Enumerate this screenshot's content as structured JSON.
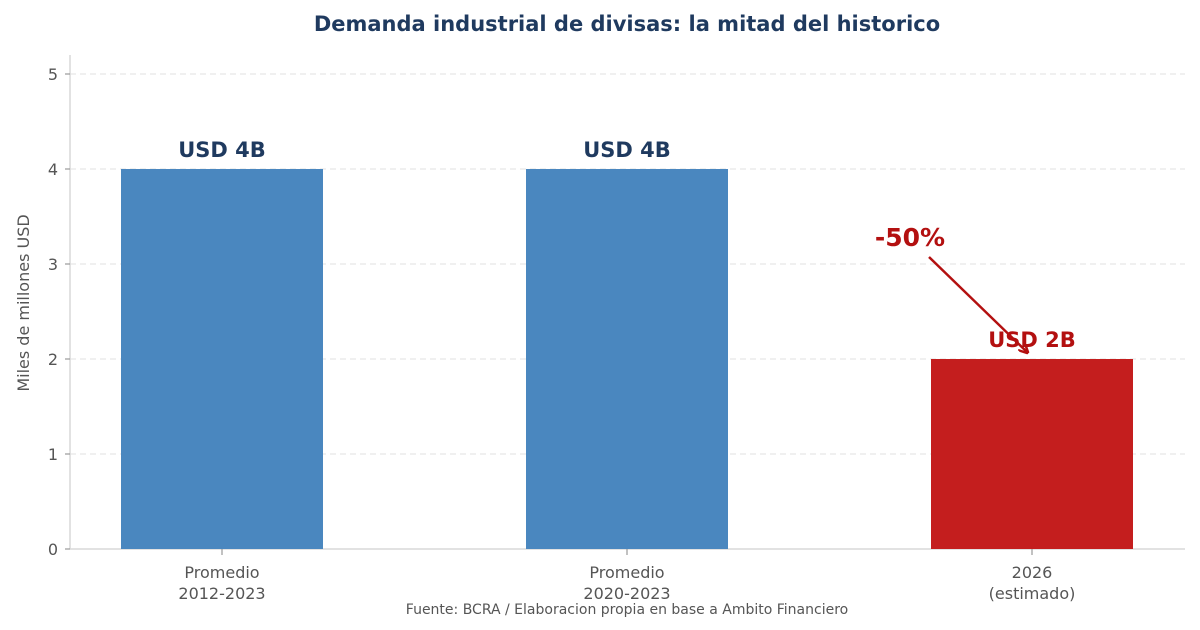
{
  "chart_data": {
    "type": "bar",
    "title": "Demanda industrial de divisas: la mitad del historico",
    "ylabel": "Miles de millones USD",
    "xlabel": "",
    "ylim": [
      0,
      5
    ],
    "yticks": [
      0,
      1,
      2,
      3,
      4,
      5
    ],
    "grid": "y-dashed",
    "categories": [
      [
        "Promedio",
        "2012-2023"
      ],
      [
        "Promedio",
        "2020-2023"
      ],
      [
        "2026",
        "(estimado)"
      ]
    ],
    "values": [
      4,
      4,
      2
    ],
    "bar_labels": [
      "USD 4B",
      "USD 4B",
      "USD 2B"
    ],
    "bar_colors": [
      "#4a87bf",
      "#4a87bf",
      "#c41e1e"
    ],
    "label_colors": [
      "#1f3a5f",
      "#1f3a5f",
      "#b31010"
    ],
    "annotation": {
      "text": "-50%",
      "color": "#b31010",
      "points_to_bar": 2
    }
  },
  "footer": {
    "source": "Fuente: BCRA / Elaboracion propia en base a Ambito Financiero"
  },
  "colors": {
    "title": "#1f3a5f",
    "axis": "#d9d9d9",
    "grid": "#e6e6e6",
    "tick_text": "#555555"
  }
}
